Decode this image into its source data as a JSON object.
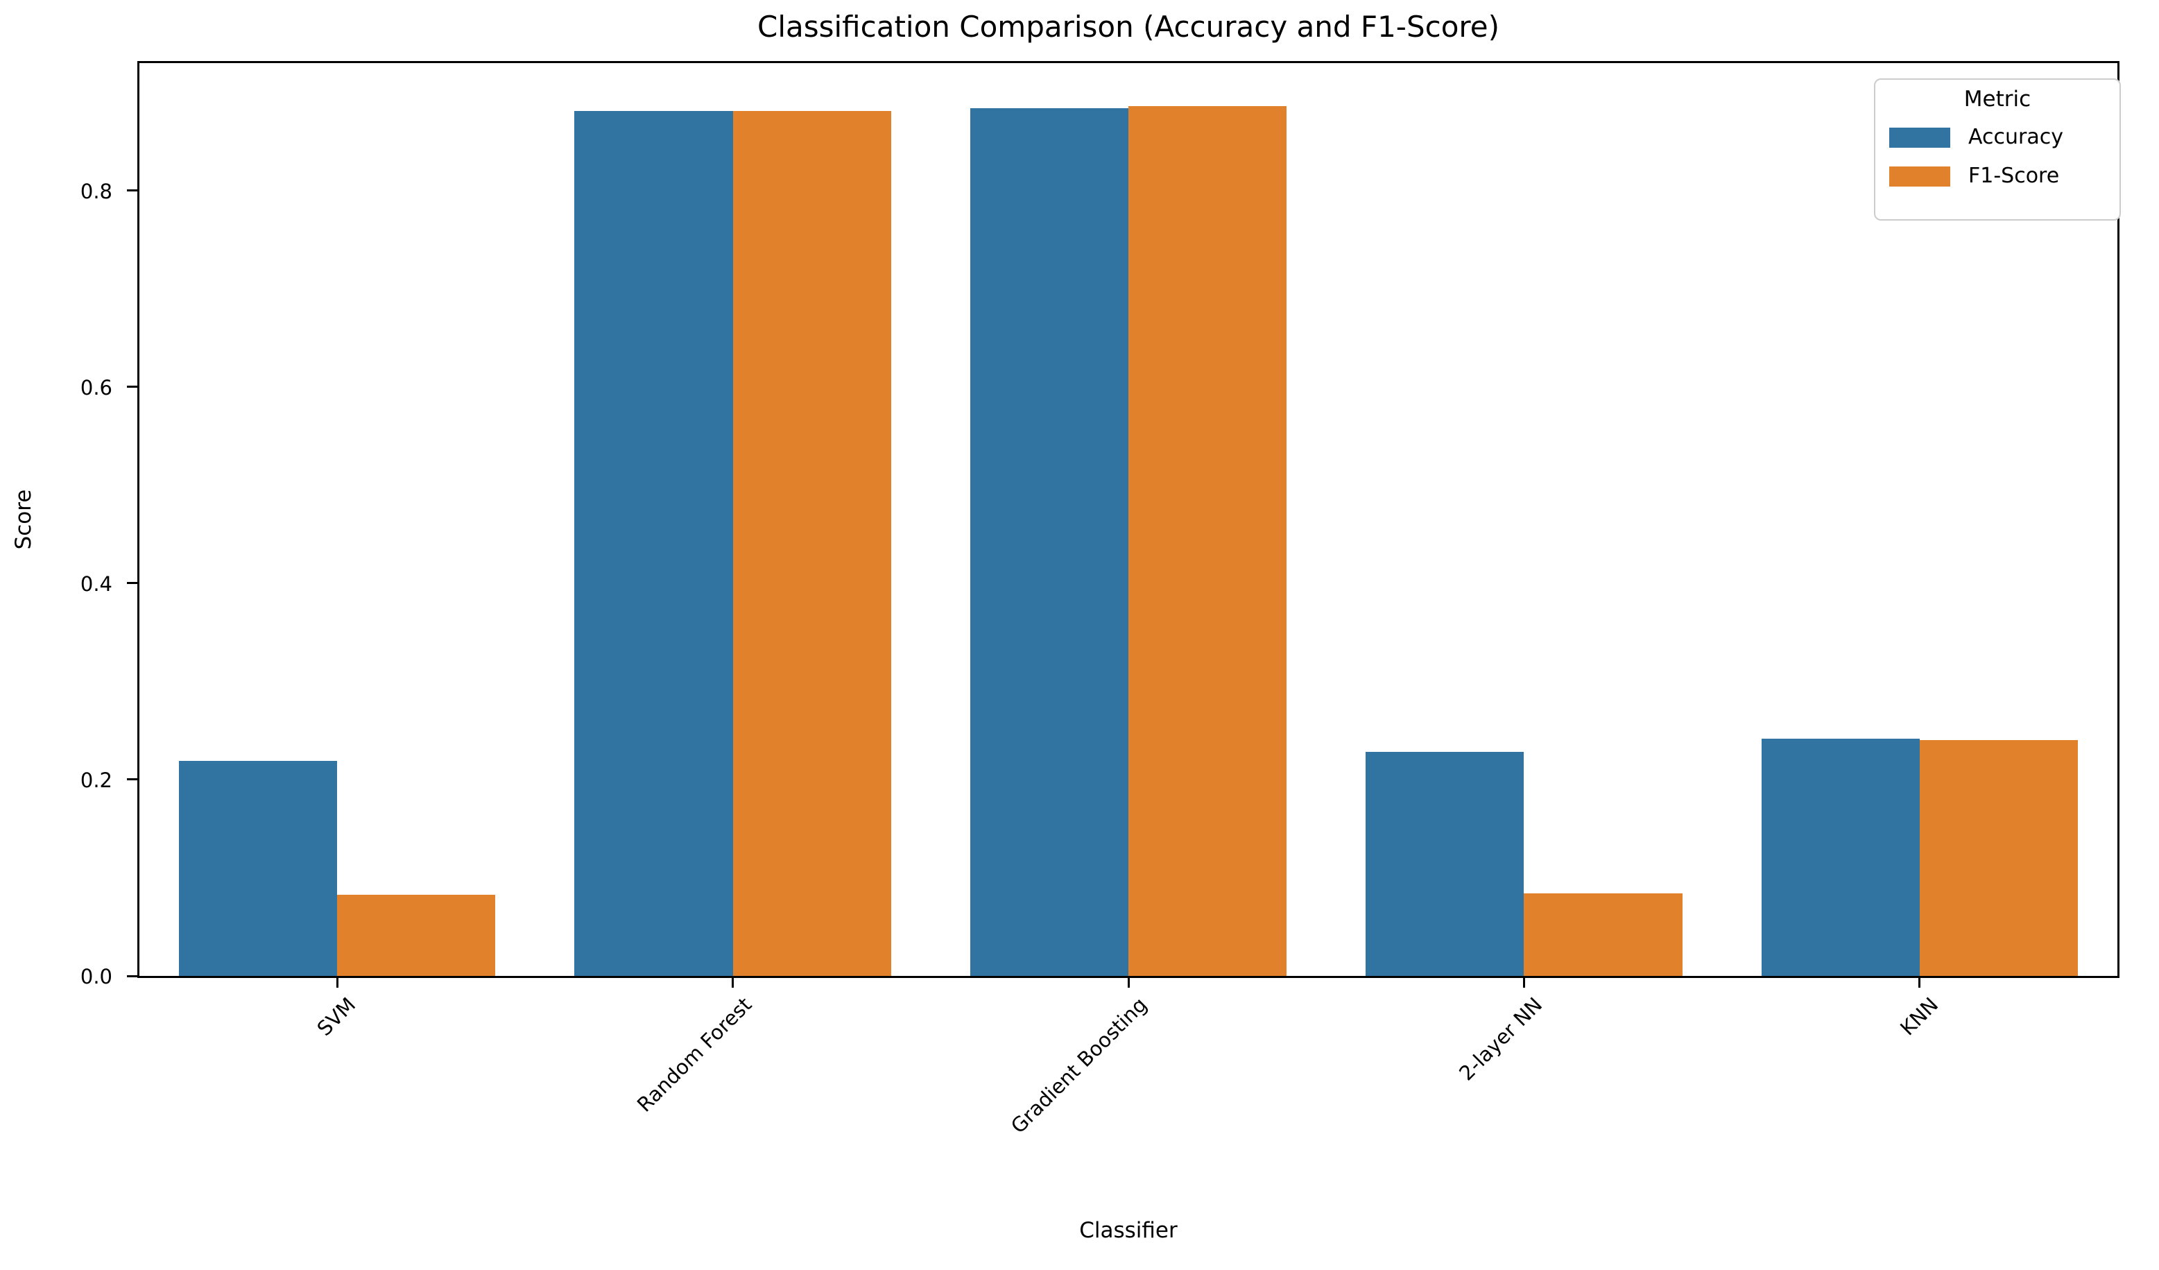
{
  "chart_data": {
    "type": "bar",
    "title": "Classification Comparison (Accuracy and F1-Score)",
    "xlabel": "Classifier",
    "ylabel": "Score",
    "categories": [
      "SVM",
      "Random Forest",
      "Gradient Boosting",
      "2-layer NN",
      "KNN"
    ],
    "series": [
      {
        "name": "Accuracy",
        "color": "#3274A1",
        "values": [
          0.219,
          0.881,
          0.884,
          0.228,
          0.242
        ]
      },
      {
        "name": "F1-Score",
        "color": "#E1812C",
        "values": [
          0.083,
          0.881,
          0.886,
          0.084,
          0.24
        ]
      }
    ],
    "ylim": [
      0,
      0.93
    ],
    "yticks": [
      0.0,
      0.2,
      0.4,
      0.6,
      0.8
    ],
    "ytick_labels": [
      "0.0",
      "0.2",
      "0.4",
      "0.6",
      "0.8"
    ],
    "grid": false,
    "legend_title": "Metric",
    "legend_position": "upper right",
    "bar_group_width_fraction": 0.8,
    "x_tick_label_rotation_deg": 45
  }
}
